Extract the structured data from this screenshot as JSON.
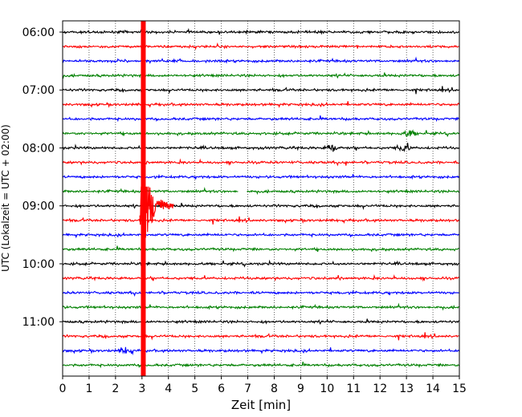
{
  "chart_data": {
    "type": "line",
    "title": "",
    "xlabel": "Zeit  [min]",
    "ylabel": "UTC (Lokalzeit = UTC + 02:00)",
    "xlim": [
      0,
      15
    ],
    "x_ticks": [
      "0",
      "1",
      "2",
      "3",
      "4",
      "5",
      "6",
      "7",
      "8",
      "9",
      "10",
      "11",
      "12",
      "13",
      "14",
      "15"
    ],
    "y_ticks": [
      {
        "label": "06:00",
        "trace": 0
      },
      {
        "label": "07:00",
        "trace": 4
      },
      {
        "label": "08:00",
        "trace": 8
      },
      {
        "label": "09:00",
        "trace": 12
      },
      {
        "label": "10:00",
        "trace": 16
      },
      {
        "label": "11:00",
        "trace": 20
      }
    ],
    "trace_start_utc": "06:00",
    "trace_length_min": 15,
    "trace_count": 24,
    "trace_colors": [
      "#000000",
      "#ff0000",
      "#0000ff",
      "#008000"
    ],
    "vertical_grid": "dotted",
    "events": [
      {
        "trace_start": "06:00",
        "trace_end": "11:45",
        "time_min": 3.05,
        "kind": "large quake, clipped across all traces"
      },
      {
        "trace_start": "08:45",
        "trace_end": "09:45",
        "time_min": 3.1,
        "kind": "large coda"
      },
      {
        "trace_start": "08:00",
        "time_min": 10.2,
        "kind": "small event"
      },
      {
        "trace_start": "08:00",
        "time_min": 12.9,
        "kind": "small event"
      },
      {
        "trace_start": "07:45",
        "time_min": 13.1,
        "kind": "small event"
      },
      {
        "trace_start": "11:30",
        "time_min": 2.4,
        "kind": "small event"
      }
    ],
    "gaps": [
      {
        "trace_start": "08:45",
        "time_min_from": 6.65,
        "time_min_to": 6.95
      }
    ]
  }
}
